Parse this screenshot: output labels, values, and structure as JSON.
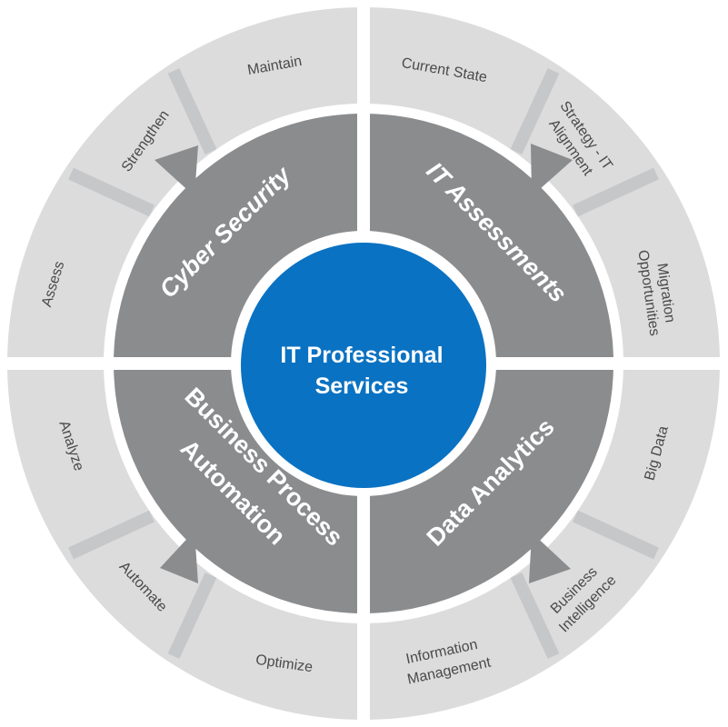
{
  "center": {
    "line1": "IT Professional",
    "line2": "Services"
  },
  "quadrants": {
    "cyber": {
      "label": "Cyber Security"
    },
    "it": {
      "label": "IT Assessments"
    },
    "bpa": {
      "line1": "Business Process",
      "line2": "Automation"
    },
    "data": {
      "label": "Data Analytics"
    }
  },
  "outer": {
    "maintain": "Maintain",
    "strengthen": "Strengthen",
    "assess": "Assess",
    "current_state": "Current State",
    "strategy_l1": "Strategy - IT",
    "strategy_l2": "Alignment",
    "migration_l1": "Migration",
    "migration_l2": "Opportunities",
    "analyze": "Analyze",
    "automate": "Automate",
    "optimize": "Optimize",
    "big_data": "Big Data",
    "bi_l1": "Business",
    "bi_l2": "Intelligence",
    "im_l1": "Information",
    "im_l2": "Management"
  },
  "colors": {
    "outer_ring": "#dcdcdd",
    "outer_divider": "#c6c7c9",
    "inner_ring": "#8b8c8e",
    "center": "#0a72c2",
    "gap": "#ffffff"
  }
}
